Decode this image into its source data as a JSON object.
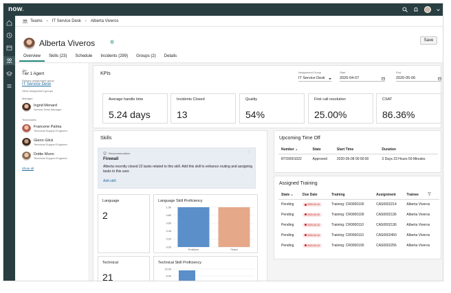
{
  "app": {
    "logo_text": "now"
  },
  "breadcrumb": {
    "items": [
      "Teams",
      "IT Service Desk",
      "Alberta Viveros"
    ]
  },
  "profile": {
    "name": "Alberta Viveros",
    "save_label": "Save",
    "tabs": [
      "Overview",
      "Skills (23)",
      "Schedule",
      "Incidents (299)",
      "Groups (2)",
      "Details"
    ]
  },
  "left": {
    "title_label": "Title",
    "title_value": "Tier 1 Agent",
    "primary_group_label": "Primary assignment group",
    "primary_group_value": "IT Service Desk",
    "other_groups_label": "Other assignment groups",
    "manager_label": "Manager",
    "manager": {
      "name": "Ingrid Menard",
      "role": "Service Desk Manager"
    },
    "teammates_label": "Teammates",
    "teammates": [
      {
        "name": "Francene Palma",
        "role": "Technical Support Engineer"
      },
      {
        "name": "Glenn Glick",
        "role": "Technical Support Engineer"
      },
      {
        "name": "Dottie Monn",
        "role": "Technical Support Engineer"
      }
    ],
    "show_all": "Show all"
  },
  "kpis": {
    "title": "KPIs",
    "assignment_group_label": "Assignment Group",
    "assignment_group_value": "IT Service Desk",
    "start_label": "Start",
    "start_value": "2020-04-07",
    "end_label": "End",
    "end_value": "2020-05-06",
    "cards": [
      {
        "label": "Average handle time",
        "value": "5.24 days"
      },
      {
        "label": "Incidents Closed",
        "value": "13"
      },
      {
        "label": "Quality",
        "value": "54%"
      },
      {
        "label": "First call resolution",
        "value": "25.00%"
      },
      {
        "label": "CSAT",
        "value": "86.36%"
      }
    ]
  },
  "skills": {
    "title": "Skills",
    "rec_label": "Recommendation",
    "rec_title": "Firewall",
    "rec_text": "Alberta recently closed 22 tasks related to this skill. Add this skill to enhance routing and assigning tasks to this user.",
    "rec_action": "Add skill",
    "language_label": "Language",
    "language_value": "2",
    "language_chart_title": "Language Skill Proficiency",
    "technical_label": "Technical",
    "technical_value": "21",
    "technical_chart_title": "Technical Skill Proficiency"
  },
  "chart_data": [
    {
      "type": "bar",
      "title": "Language Skill Proficiency",
      "categories": [
        "Proficient",
        "Fluent"
      ],
      "values": [
        1.0,
        1.0
      ],
      "colors": [
        "#5b8fc9",
        "#e5a98a"
      ],
      "ylim": [
        0,
        1.0
      ],
      "yticks": [
        "0.00",
        "0.20",
        "0.40",
        "0.60",
        "0.80",
        "1.00"
      ]
    },
    {
      "type": "bar",
      "title": "Technical Skill Proficiency",
      "yticks": [
        "10.00",
        "8.00"
      ]
    }
  ],
  "time_off": {
    "title": "Upcoming Time Off",
    "columns": [
      "Number",
      "State",
      "Start Time",
      "Duration"
    ],
    "rows": [
      {
        "number": "RTO0001022",
        "state": "Approved",
        "start": "2020-05-08 00:00:00",
        "duration": "3 Days 23 Hours 59 Minutes"
      }
    ]
  },
  "training": {
    "title": "Assigned Training",
    "columns": [
      "State",
      "Due Date",
      "Training",
      "Assignment",
      "Trainee"
    ],
    "rows": [
      {
        "state": "Pending",
        "due": "2020-04-19",
        "training": "Training: CR0000100",
        "assignment": "CAS0002214",
        "trainee": "Alberta Viveros"
      },
      {
        "state": "Pending",
        "due": "2020-04-23",
        "training": "Training: CR0000109",
        "assignment": "CAS0002136",
        "trainee": "Alberta Viveros"
      },
      {
        "state": "Pending",
        "due": "2020-04-23",
        "training": "Training: CR0000110",
        "assignment": "CAS0002136",
        "trainee": "Alberta Viveros"
      },
      {
        "state": "Pending",
        "due": "2020-04-19",
        "training": "Training: CR0000110",
        "assignment": "CAS0002450",
        "trainee": "Alberta Viveros"
      },
      {
        "state": "Pending",
        "due": "2020-04-19",
        "training": "Training: CR0000100",
        "assignment": "CAS0002256",
        "trainee": "Alberta Viveros"
      }
    ]
  }
}
